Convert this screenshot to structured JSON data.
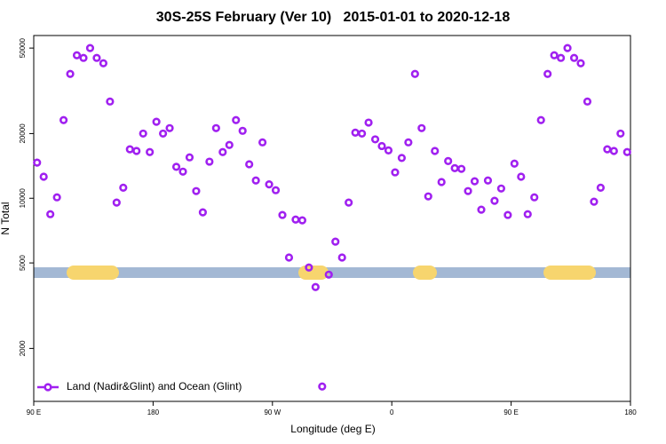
{
  "chart_data": {
    "type": "scatter",
    "title": "30S-25S February (Ver 10)   2015-01-01 to 2020-12-18",
    "x_label": "Longitude (deg E)",
    "y_label": "N Total",
    "ylog": true,
    "xlim": [
      90,
      540
    ],
    "xticks": [
      {
        "value": 90,
        "label": "90 E"
      },
      180,
      {
        "value": 270,
        "label": "90 W"
      },
      {
        "value": 360,
        "label": "0"
      },
      {
        "value": 450,
        "label": "90 E"
      },
      {
        "value": 540,
        "label": "180"
      }
    ],
    "ylim": [
      1134,
      57200
    ],
    "yticks": [
      2000,
      5000,
      10000,
      20000,
      50000
    ],
    "legend": "bottom-left",
    "series": [
      {
        "name": "Land (Nadir&Glint) and Ocean (Glint)",
        "color": "#a020f0",
        "x": [
          92.5,
          97.5,
          102.5,
          107.5,
          112.5,
          117.5,
          122.5,
          127.5,
          132.5,
          137.5,
          142.5,
          147.5,
          152.5,
          157.5,
          162.5,
          167.5,
          172.5,
          177.5,
          182.5,
          187.5,
          192.5,
          197.5,
          202.5,
          207.5,
          212.5,
          217.5,
          222.5,
          227.5,
          232.5,
          237.5,
          242.5,
          247.5,
          252.5,
          257.5,
          262.5,
          267.5,
          272.5,
          277.5,
          282.5,
          287.5,
          292.5,
          297.5,
          302.5,
          307.5,
          312.5,
          317.5,
          322.5,
          327.5,
          332.5,
          337.5,
          342.5,
          347.5,
          352.5,
          357.5,
          362.5,
          367.5,
          372.5,
          377.5,
          382.5,
          387.5,
          392.5,
          397.5,
          402.5,
          407.5,
          412.5,
          417.5,
          422.5,
          427.5,
          432.5,
          437.5,
          442.5,
          447.5,
          452.5,
          457.5,
          462.5,
          467.5,
          472.5,
          477.5,
          482.5,
          487.5,
          492.5,
          497.5,
          502.5,
          507.5,
          512.5,
          517.5,
          522.5,
          527.5,
          532.5,
          537.5
        ],
        "values": [
          14650,
          12600,
          8430,
          10100,
          23100,
          37900,
          46300,
          45000,
          50000,
          45000,
          42500,
          28200,
          9550,
          11200,
          16900,
          16600,
          20000,
          16400,
          22700,
          20000,
          21200,
          14000,
          13300,
          15500,
          10800,
          8600,
          14800,
          21200,
          16400,
          17700,
          23100,
          20600,
          14400,
          12100,
          18200,
          11600,
          10900,
          8360,
          5300,
          7960,
          7890,
          4760,
          3860,
          1330,
          4410,
          6280,
          5300,
          9550,
          20200,
          20000,
          22500,
          18800,
          17500,
          16700,
          13200,
          15400,
          18200,
          37900,
          21200,
          10200,
          16600,
          11900,
          14900,
          13800,
          13700,
          10800,
          12000,
          8850,
          12100,
          9730,
          11100,
          8360,
          14500,
          12600,
          8430,
          10100,
          23100,
          37900,
          46300,
          45000,
          50000,
          45000,
          42500,
          28200,
          9640,
          11200,
          16900,
          16600,
          20000,
          16400
        ]
      }
    ]
  }
}
